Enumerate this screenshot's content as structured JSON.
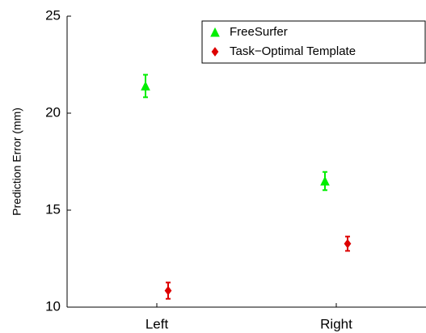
{
  "chart_data": {
    "type": "errorbar",
    "y_label": "Prediction Error (mm)",
    "categories": [
      "Left",
      "Right"
    ],
    "series": [
      {
        "name": "FreeSurfer",
        "color": "#00ee00",
        "marker": "triangle",
        "values": [
          21.4,
          16.5
        ],
        "errors": [
          0.58,
          0.47
        ]
      },
      {
        "name": "Task−Optimal Template",
        "color": "#dd0000",
        "marker": "diamond",
        "values": [
          10.85,
          13.27
        ],
        "errors": [
          0.42,
          0.37
        ]
      }
    ],
    "ylim": [
      10,
      25
    ],
    "yticks": [
      10,
      15,
      20,
      25
    ],
    "legend": "northeast"
  }
}
